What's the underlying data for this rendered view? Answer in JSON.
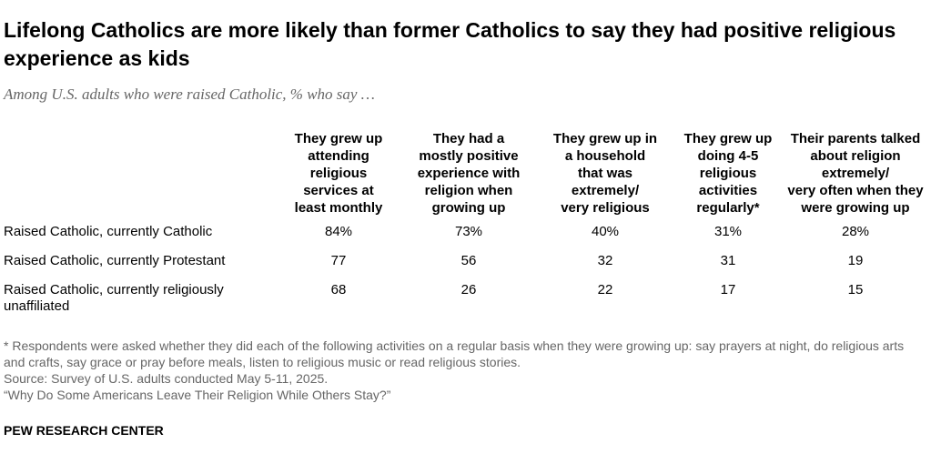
{
  "header": {
    "title": "Lifelong Catholics are more likely than former Catholics to say they had positive religious experience as kids",
    "subtitle": "Among U.S. adults who were raised Catholic, % who say …"
  },
  "table": {
    "columns": [
      [
        "They grew up",
        "attending",
        "religious",
        "services at",
        "least monthly"
      ],
      [
        "They had a",
        "mostly positive",
        "experience with",
        "religion when",
        "growing up"
      ],
      [
        "They grew up in",
        "a household",
        "that was",
        "extremely/",
        "very religious"
      ],
      [
        "They grew up",
        "doing 4-5",
        "religious",
        "activities",
        "regularly*"
      ],
      [
        "Their parents talked",
        "about religion",
        "extremely/",
        "very often when they",
        "were growing up"
      ]
    ],
    "rows": [
      [
        "Raised Catholic, currently Catholic",
        "84%",
        "73%",
        "40%",
        "31%",
        "28%"
      ],
      [
        "Raised Catholic, currently Protestant",
        "77",
        "56",
        "32",
        "31",
        "19"
      ],
      [
        "Raised Catholic, currently religiously unaffiliated",
        "68",
        "26",
        "22",
        "17",
        "15"
      ]
    ]
  },
  "footer": {
    "notes": [
      "* Respondents were asked whether they did each of the following activities on a regular basis when they were growing up: say prayers at night, do religious arts and crafts, say grace or pray before meals, listen to religious music or read religious stories.",
      "Source: Survey of U.S. adults conducted May 5-11, 2025.",
      "“Why Do Some Americans Leave Their Religion While Others Stay?”"
    ],
    "brand": "PEW RESEARCH CENTER"
  }
}
